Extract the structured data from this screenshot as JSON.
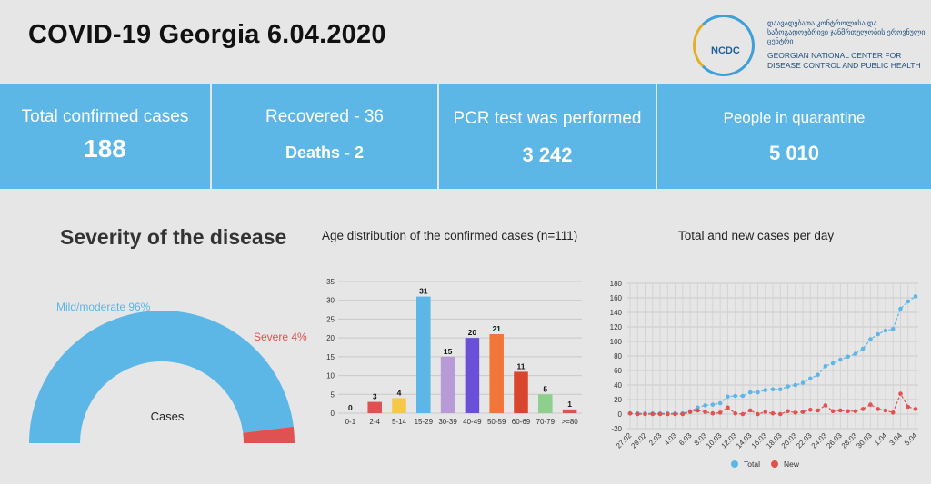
{
  "header": {
    "title": "COVID-19  Georgia  6.04.2020"
  },
  "logo": {
    "abbr": "NCDC",
    "geo_text": "დაავადებათა კონტროლისა და საზოგადოებრივი ჯანმრთელობის ეროვნული ცენტრი",
    "en_text": "GEORGIAN NATIONAL CENTER FOR DISEASE CONTROL AND PUBLIC HEALTH"
  },
  "stats": {
    "confirmed_label": "Total confirmed cases",
    "confirmed_value": "188",
    "recovered_label": "Recovered - 36",
    "deaths_label": "Deaths - 2",
    "pcr_label": "PCR test was performed",
    "pcr_value": "3 242",
    "quarantine_label": "People in quarantine",
    "quarantine_value": "5 010"
  },
  "colors": {
    "band": "#5cb6e6",
    "mild": "#5cb6e6",
    "severe": "#e05252",
    "total": "#5cb6e6",
    "new": "#e05252"
  },
  "chart_data": [
    {
      "type": "pie",
      "title": "Severity of the disease",
      "center_label": "Cases",
      "categories": [
        "Mild/moderate",
        "Severe"
      ],
      "values": [
        96,
        4
      ],
      "labels": [
        "Mild/moderate 96%",
        "Severe 4%"
      ]
    },
    {
      "type": "bar",
      "title": "Age distribution of the confirmed cases (n=111)",
      "categories": [
        "0-1",
        "2-4",
        "5-14",
        "15-29",
        "30-39",
        "40-49",
        "50-59",
        "60-69",
        "70-79",
        ">=80"
      ],
      "values": [
        0,
        3,
        4,
        31,
        15,
        20,
        21,
        11,
        5,
        1
      ],
      "colors": [
        "#cccccc",
        "#e05252",
        "#f5c84a",
        "#5cb6e6",
        "#b79ad6",
        "#6a4fd9",
        "#f2763a",
        "#d9462d",
        "#8ecf8e",
        "#e05252"
      ],
      "ylim": [
        0,
        35
      ],
      "yticks": [
        0,
        5,
        10,
        15,
        20,
        25,
        30,
        35
      ]
    },
    {
      "type": "line",
      "title": "Total and new cases per day",
      "x": [
        "27.02",
        "28.02",
        "29.02",
        "1.03",
        "2.03",
        "3.03",
        "4.03",
        "5.03",
        "6.03",
        "7.03",
        "8.03",
        "9.03",
        "10.03",
        "11.03",
        "12.03",
        "13.03",
        "14.03",
        "15.03",
        "16.03",
        "17.03",
        "18.03",
        "19.03",
        "20.03",
        "21.03",
        "22.03",
        "23.03",
        "24.03",
        "25.03",
        "26.03",
        "27.03",
        "28.03",
        "29.03",
        "30.03",
        "31.03",
        "1.04",
        "2.04",
        "3.04",
        "4.04",
        "5.04"
      ],
      "xtick_labels": [
        "27.02",
        "29.02",
        "2.03",
        "4.03",
        "6.03",
        "8.03",
        "10.03",
        "12.03",
        "14.03",
        "16.03",
        "18.03",
        "20.03",
        "22.03",
        "24.03",
        "26.03",
        "28.03",
        "30.03",
        "1.04",
        "3.04",
        "5.04"
      ],
      "series": [
        {
          "name": "Total",
          "values": [
            1,
            1,
            1,
            1,
            1,
            1,
            1,
            1,
            4,
            9,
            12,
            13,
            15,
            24,
            25,
            25,
            30,
            30,
            33,
            34,
            34,
            38,
            40,
            43,
            49,
            54,
            66,
            70,
            75,
            79,
            83,
            90,
            103,
            110,
            115,
            117,
            145,
            155,
            162
          ]
        },
        {
          "name": "New",
          "values": [
            1,
            0,
            0,
            0,
            0,
            0,
            0,
            0,
            3,
            5,
            3,
            1,
            2,
            9,
            1,
            0,
            5,
            0,
            3,
            1,
            0,
            4,
            2,
            3,
            6,
            5,
            12,
            4,
            5,
            4,
            4,
            7,
            13,
            7,
            5,
            2,
            28,
            10,
            7
          ]
        }
      ],
      "ylim": [
        -20,
        180
      ],
      "yticks": [
        -20,
        0,
        20,
        40,
        60,
        80,
        100,
        120,
        140,
        160,
        180
      ],
      "legend": [
        "Total",
        "New"
      ]
    }
  ]
}
